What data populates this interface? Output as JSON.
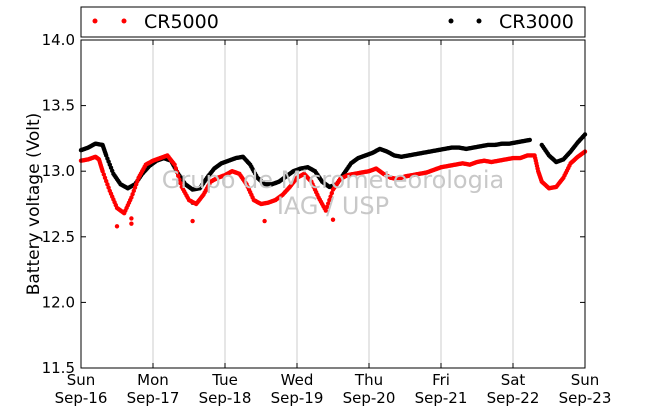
{
  "chart_data": {
    "type": "scatter",
    "title": "",
    "xlabel": "",
    "ylabel": "Battery voltage (Volt)",
    "ylim": [
      11.5,
      14.0
    ],
    "yticks": [
      "11.5",
      "12.0",
      "12.5",
      "13.0",
      "13.5",
      "14.0"
    ],
    "xlim": [
      0,
      7
    ],
    "xticks": [
      {
        "day": "Sun",
        "date": "Sep-16"
      },
      {
        "day": "Mon",
        "date": "Sep-17"
      },
      {
        "day": "Tue",
        "date": "Sep-18"
      },
      {
        "day": "Wed",
        "date": "Sep-19"
      },
      {
        "day": "Thu",
        "date": "Sep-20"
      },
      {
        "day": "Fri",
        "date": "Sep-21"
      },
      {
        "day": "Sat",
        "date": "Sep-22"
      },
      {
        "day": "Sun",
        "date": "Sep-23"
      }
    ],
    "grid": "vertical",
    "legend_position": "top",
    "watermark": [
      "Grupo de Micrometeorologia",
      "IAG / USP"
    ],
    "series": [
      {
        "name": "CR5000",
        "color": "#ff0000",
        "points": [
          [
            0.0,
            13.08
          ],
          [
            0.1,
            13.09
          ],
          [
            0.2,
            13.11
          ],
          [
            0.25,
            13.09
          ],
          [
            0.3,
            13.0
          ],
          [
            0.4,
            12.85
          ],
          [
            0.5,
            12.72
          ],
          [
            0.6,
            12.68
          ],
          [
            0.7,
            12.8
          ],
          [
            0.8,
            12.95
          ],
          [
            0.9,
            13.05
          ],
          [
            1.0,
            13.08
          ],
          [
            1.1,
            13.1
          ],
          [
            1.2,
            13.12
          ],
          [
            1.3,
            13.05
          ],
          [
            1.4,
            12.88
          ],
          [
            1.5,
            12.78
          ],
          [
            1.6,
            12.75
          ],
          [
            1.7,
            12.82
          ],
          [
            1.8,
            12.92
          ],
          [
            1.9,
            12.95
          ],
          [
            2.0,
            12.97
          ],
          [
            2.1,
            13.0
          ],
          [
            2.2,
            12.98
          ],
          [
            2.3,
            12.9
          ],
          [
            2.4,
            12.78
          ],
          [
            2.5,
            12.75
          ],
          [
            2.6,
            12.76
          ],
          [
            2.7,
            12.78
          ],
          [
            2.8,
            12.82
          ],
          [
            2.9,
            12.88
          ],
          [
            3.0,
            12.95
          ],
          [
            3.1,
            12.98
          ],
          [
            3.2,
            12.92
          ],
          [
            3.3,
            12.8
          ],
          [
            3.4,
            12.7
          ],
          [
            3.5,
            12.86
          ],
          [
            3.6,
            12.94
          ],
          [
            3.7,
            12.97
          ],
          [
            3.8,
            12.98
          ],
          [
            3.9,
            12.99
          ],
          [
            4.0,
            13.0
          ],
          [
            4.1,
            13.02
          ],
          [
            4.2,
            12.98
          ],
          [
            4.3,
            12.95
          ],
          [
            4.4,
            12.94
          ],
          [
            4.5,
            12.96
          ],
          [
            4.6,
            12.97
          ],
          [
            4.7,
            12.98
          ],
          [
            4.8,
            12.99
          ],
          [
            4.9,
            13.01
          ],
          [
            5.0,
            13.03
          ],
          [
            5.1,
            13.04
          ],
          [
            5.2,
            13.05
          ],
          [
            5.3,
            13.06
          ],
          [
            5.4,
            13.05
          ],
          [
            5.5,
            13.07
          ],
          [
            5.6,
            13.08
          ],
          [
            5.7,
            13.07
          ],
          [
            5.8,
            13.08
          ],
          [
            5.9,
            13.09
          ],
          [
            6.0,
            13.1
          ],
          [
            6.1,
            13.1
          ],
          [
            6.2,
            13.12
          ],
          [
            6.3,
            13.12
          ],
          [
            6.35,
            13.0
          ],
          [
            6.4,
            12.92
          ],
          [
            6.5,
            12.87
          ],
          [
            6.6,
            12.88
          ],
          [
            6.7,
            12.95
          ],
          [
            6.8,
            13.06
          ],
          [
            6.9,
            13.11
          ],
          [
            7.0,
            13.15
          ]
        ],
        "outliers": [
          [
            0.5,
            12.58
          ],
          [
            0.7,
            12.6
          ],
          [
            0.7,
            12.64
          ],
          [
            1.55,
            12.62
          ],
          [
            2.55,
            12.62
          ],
          [
            3.5,
            12.63
          ]
        ]
      },
      {
        "name": "CR3000",
        "color": "#000000",
        "points": [
          [
            0.0,
            13.16
          ],
          [
            0.1,
            13.18
          ],
          [
            0.2,
            13.21
          ],
          [
            0.3,
            13.2
          ],
          [
            0.35,
            13.12
          ],
          [
            0.45,
            12.98
          ],
          [
            0.55,
            12.9
          ],
          [
            0.65,
            12.87
          ],
          [
            0.75,
            12.9
          ],
          [
            0.85,
            12.98
          ],
          [
            0.95,
            13.04
          ],
          [
            1.05,
            13.08
          ],
          [
            1.15,
            13.1
          ],
          [
            1.25,
            13.08
          ],
          [
            1.35,
            12.98
          ],
          [
            1.45,
            12.9
          ],
          [
            1.55,
            12.86
          ],
          [
            1.65,
            12.87
          ],
          [
            1.75,
            12.95
          ],
          [
            1.85,
            13.02
          ],
          [
            1.95,
            13.06
          ],
          [
            2.05,
            13.08
          ],
          [
            2.15,
            13.1
          ],
          [
            2.25,
            13.11
          ],
          [
            2.35,
            13.05
          ],
          [
            2.45,
            12.95
          ],
          [
            2.55,
            12.9
          ],
          [
            2.65,
            12.9
          ],
          [
            2.75,
            12.92
          ],
          [
            2.85,
            12.96
          ],
          [
            2.95,
            13.0
          ],
          [
            3.05,
            13.02
          ],
          [
            3.15,
            13.03
          ],
          [
            3.25,
            13.0
          ],
          [
            3.35,
            12.92
          ],
          [
            3.45,
            12.88
          ],
          [
            3.55,
            12.9
          ],
          [
            3.65,
            12.98
          ],
          [
            3.75,
            13.06
          ],
          [
            3.85,
            13.1
          ],
          [
            3.95,
            13.12
          ],
          [
            4.05,
            13.14
          ],
          [
            4.15,
            13.17
          ],
          [
            4.25,
            13.15
          ],
          [
            4.35,
            13.12
          ],
          [
            4.45,
            13.11
          ],
          [
            4.55,
            13.12
          ],
          [
            4.65,
            13.13
          ],
          [
            4.75,
            13.14
          ],
          [
            4.85,
            13.15
          ],
          [
            4.95,
            13.16
          ],
          [
            5.05,
            13.17
          ],
          [
            5.15,
            13.18
          ],
          [
            5.25,
            13.18
          ],
          [
            5.35,
            13.17
          ],
          [
            5.45,
            13.18
          ],
          [
            5.55,
            13.19
          ],
          [
            5.65,
            13.2
          ],
          [
            5.75,
            13.2
          ],
          [
            5.85,
            13.21
          ],
          [
            5.95,
            13.21
          ],
          [
            6.05,
            13.22
          ],
          [
            6.15,
            13.23
          ],
          [
            6.25,
            13.24
          ],
          [
            6.4,
            13.2
          ],
          [
            6.5,
            13.12
          ],
          [
            6.6,
            13.07
          ],
          [
            6.7,
            13.09
          ],
          [
            6.8,
            13.15
          ],
          [
            6.9,
            13.22
          ],
          [
            7.0,
            13.28
          ]
        ],
        "outliers": [
          [
            1.55,
            12.76
          ]
        ]
      }
    ]
  }
}
